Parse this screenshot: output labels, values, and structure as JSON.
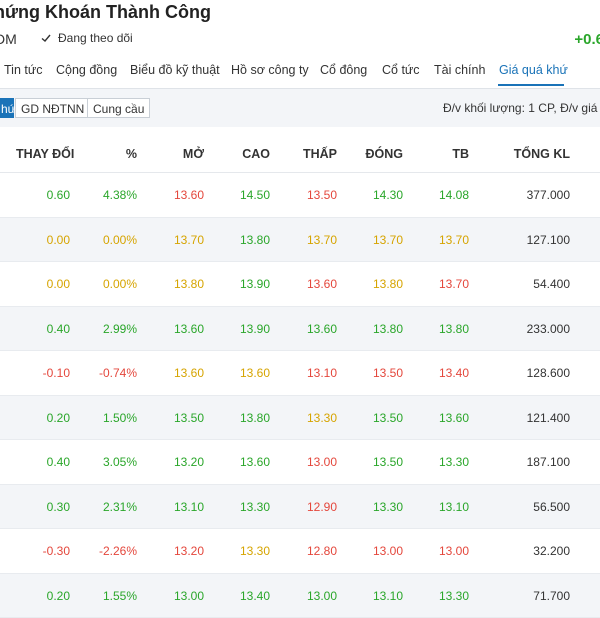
{
  "header": {
    "company_name": "hứng Khoán Thành Công",
    "ticker": "DM",
    "follow_label": "Đang theo dõi",
    "price_change": "+0.6"
  },
  "tabs": [
    {
      "label": "Tin tức",
      "active": false
    },
    {
      "label": "Cộng đồng",
      "active": false
    },
    {
      "label": "Biểu đồ kỹ thuật",
      "active": false
    },
    {
      "label": "Hồ sơ công ty",
      "active": false
    },
    {
      "label": "Cổ đông",
      "active": false
    },
    {
      "label": "Cổ tức",
      "active": false
    },
    {
      "label": "Tài chính",
      "active": false
    },
    {
      "label": "Giá quá khứ",
      "active": true
    }
  ],
  "subbar": {
    "segments": [
      {
        "label": "hứ",
        "active": true
      },
      {
        "label": "GD NĐTNN",
        "active": false
      },
      {
        "label": "Cung cầu",
        "active": false
      }
    ],
    "unit_note": "Đ/v khối lượng: 1 CP, Đ/v giá t"
  },
  "table": {
    "columns": [
      "THAY ĐỔI",
      "%",
      "MỞ",
      "CAO",
      "THẤP",
      "ĐÓNG",
      "TB",
      "TỔNG KL"
    ],
    "rows": [
      [
        {
          "v": "0.60",
          "c": "up"
        },
        {
          "v": "4.38%",
          "c": "up"
        },
        {
          "v": "13.60",
          "c": "down"
        },
        {
          "v": "14.50",
          "c": "up"
        },
        {
          "v": "13.50",
          "c": "down"
        },
        {
          "v": "14.30",
          "c": "up"
        },
        {
          "v": "14.08",
          "c": "up"
        },
        {
          "v": "377.000",
          "c": "neutral"
        }
      ],
      [
        {
          "v": "0.00",
          "c": "ref"
        },
        {
          "v": "0.00%",
          "c": "ref"
        },
        {
          "v": "13.70",
          "c": "ref"
        },
        {
          "v": "13.80",
          "c": "up"
        },
        {
          "v": "13.70",
          "c": "ref"
        },
        {
          "v": "13.70",
          "c": "ref"
        },
        {
          "v": "13.70",
          "c": "ref"
        },
        {
          "v": "127.100",
          "c": "neutral"
        }
      ],
      [
        {
          "v": "0.00",
          "c": "ref"
        },
        {
          "v": "0.00%",
          "c": "ref"
        },
        {
          "v": "13.80",
          "c": "ref"
        },
        {
          "v": "13.90",
          "c": "up"
        },
        {
          "v": "13.60",
          "c": "down"
        },
        {
          "v": "13.80",
          "c": "ref"
        },
        {
          "v": "13.70",
          "c": "down"
        },
        {
          "v": "54.400",
          "c": "neutral"
        }
      ],
      [
        {
          "v": "0.40",
          "c": "up"
        },
        {
          "v": "2.99%",
          "c": "up"
        },
        {
          "v": "13.60",
          "c": "up"
        },
        {
          "v": "13.90",
          "c": "up"
        },
        {
          "v": "13.60",
          "c": "up"
        },
        {
          "v": "13.80",
          "c": "up"
        },
        {
          "v": "13.80",
          "c": "up"
        },
        {
          "v": "233.000",
          "c": "neutral"
        }
      ],
      [
        {
          "v": "-0.10",
          "c": "down"
        },
        {
          "v": "-0.74%",
          "c": "down"
        },
        {
          "v": "13.60",
          "c": "ref"
        },
        {
          "v": "13.60",
          "c": "ref"
        },
        {
          "v": "13.10",
          "c": "down"
        },
        {
          "v": "13.50",
          "c": "down"
        },
        {
          "v": "13.40",
          "c": "down"
        },
        {
          "v": "128.600",
          "c": "neutral"
        }
      ],
      [
        {
          "v": "0.20",
          "c": "up"
        },
        {
          "v": "1.50%",
          "c": "up"
        },
        {
          "v": "13.50",
          "c": "up"
        },
        {
          "v": "13.80",
          "c": "up"
        },
        {
          "v": "13.30",
          "c": "ref"
        },
        {
          "v": "13.50",
          "c": "up"
        },
        {
          "v": "13.60",
          "c": "up"
        },
        {
          "v": "121.400",
          "c": "neutral"
        }
      ],
      [
        {
          "v": "0.40",
          "c": "up"
        },
        {
          "v": "3.05%",
          "c": "up"
        },
        {
          "v": "13.20",
          "c": "up"
        },
        {
          "v": "13.60",
          "c": "up"
        },
        {
          "v": "13.00",
          "c": "down"
        },
        {
          "v": "13.50",
          "c": "up"
        },
        {
          "v": "13.30",
          "c": "up"
        },
        {
          "v": "187.100",
          "c": "neutral"
        }
      ],
      [
        {
          "v": "0.30",
          "c": "up"
        },
        {
          "v": "2.31%",
          "c": "up"
        },
        {
          "v": "13.10",
          "c": "up"
        },
        {
          "v": "13.30",
          "c": "up"
        },
        {
          "v": "12.90",
          "c": "down"
        },
        {
          "v": "13.30",
          "c": "up"
        },
        {
          "v": "13.10",
          "c": "up"
        },
        {
          "v": "56.500",
          "c": "neutral"
        }
      ],
      [
        {
          "v": "-0.30",
          "c": "down"
        },
        {
          "v": "-2.26%",
          "c": "down"
        },
        {
          "v": "13.20",
          "c": "down"
        },
        {
          "v": "13.30",
          "c": "ref"
        },
        {
          "v": "12.80",
          "c": "down"
        },
        {
          "v": "13.00",
          "c": "down"
        },
        {
          "v": "13.00",
          "c": "down"
        },
        {
          "v": "32.200",
          "c": "neutral"
        }
      ],
      [
        {
          "v": "0.20",
          "c": "up"
        },
        {
          "v": "1.55%",
          "c": "up"
        },
        {
          "v": "13.00",
          "c": "up"
        },
        {
          "v": "13.40",
          "c": "up"
        },
        {
          "v": "13.00",
          "c": "up"
        },
        {
          "v": "13.10",
          "c": "up"
        },
        {
          "v": "13.30",
          "c": "up"
        },
        {
          "v": "71.700",
          "c": "neutral"
        }
      ]
    ]
  },
  "colors": {
    "up": "#2aa62a",
    "reference": "#d6a400",
    "down": "#e4473c",
    "accent": "#1a73b8"
  },
  "icons": {
    "follow": "check-icon"
  }
}
